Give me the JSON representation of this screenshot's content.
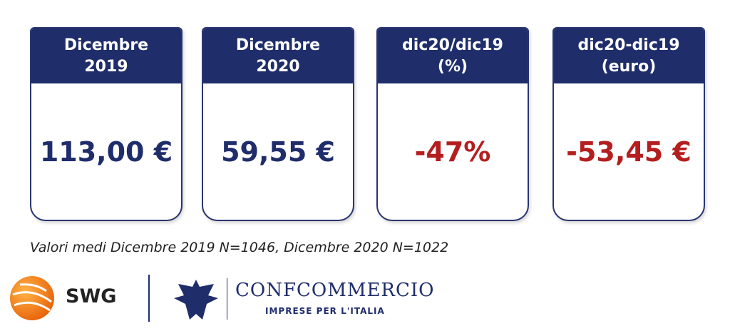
{
  "cards": [
    {
      "header": [
        "Dicembre",
        "2019"
      ],
      "value": "113,00 €"
    },
    {
      "header": [
        "Dicembre",
        "2020"
      ],
      "value": "59,55 €"
    },
    {
      "header": [
        "dic20/dic19",
        "(%)"
      ],
      "value": "-47%"
    },
    {
      "header": [
        "dic20-dic19",
        "(euro)"
      ],
      "value": "-53,45 €"
    }
  ],
  "footnote": "Valori medi Dicembre 2019 N=1046, Dicembre 2020 N=1022",
  "logos": {
    "swg": "SWG",
    "confcommercio": "CONFCOMMERCIO",
    "tagline": "IMPRESE PER L'ITALIA"
  }
}
